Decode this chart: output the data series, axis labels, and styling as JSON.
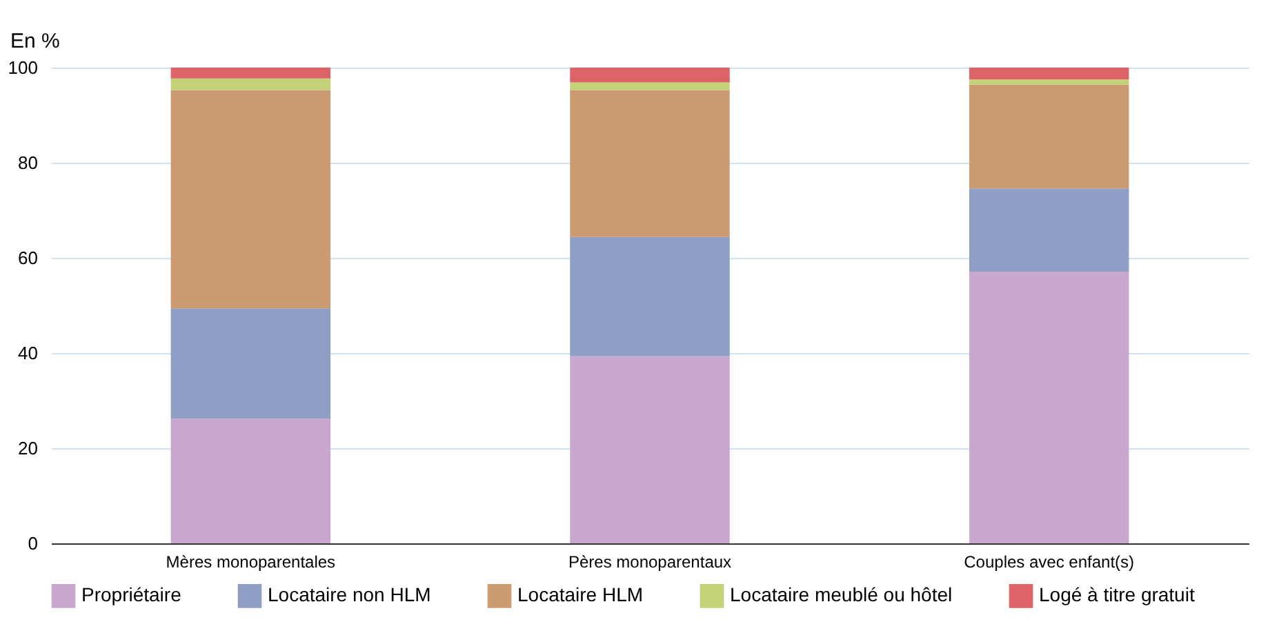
{
  "chart_data": {
    "type": "bar",
    "stacked": true,
    "ylabel": "En %",
    "categories": [
      "Mères monoparentales",
      "Pères monoparentaux",
      "Couples avec enfant(s)"
    ],
    "series": [
      {
        "name": "Propriétaire",
        "color": "#c9a7cf",
        "values": [
          26.2,
          39.3,
          57.1
        ]
      },
      {
        "name": "Locataire non HLM",
        "color": "#8f9ec4",
        "values": [
          23.2,
          25.1,
          17.5
        ]
      },
      {
        "name": "Locataire HLM",
        "color": "#cc9b72",
        "values": [
          45.9,
          30.9,
          21.8
        ]
      },
      {
        "name": "Locataire meublé ou hôtel",
        "color": "#c4d178",
        "values": [
          2.4,
          1.6,
          1.1
        ]
      },
      {
        "name": "Logé à titre gratuit",
        "color": "#dc6366",
        "values": [
          2.3,
          3.1,
          2.5
        ]
      }
    ],
    "ylim": [
      0,
      100
    ],
    "yticks": [
      0,
      20,
      40,
      60,
      80,
      100
    ],
    "grid": "y",
    "legend": "bottom"
  }
}
